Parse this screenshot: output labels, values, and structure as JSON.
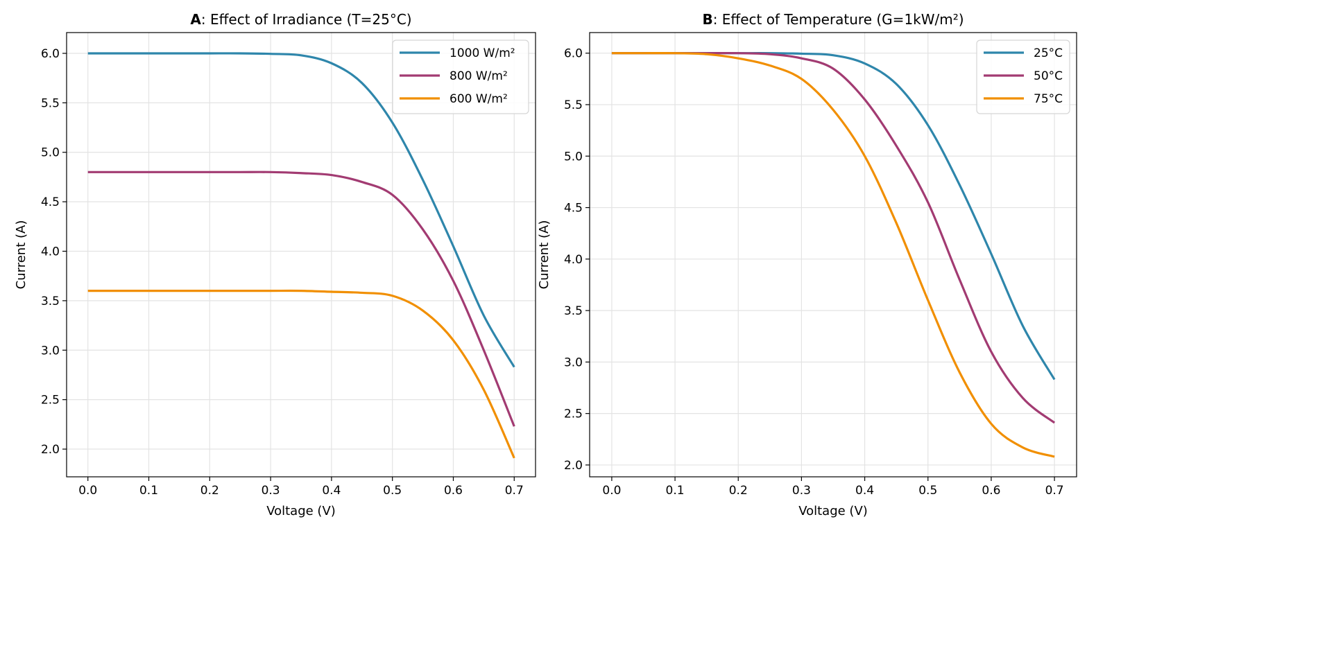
{
  "chart_data": [
    {
      "type": "line",
      "title_bold": "A",
      "title_rest": ": Effect of Irradiance (T=25°C)",
      "xlabel": "Voltage (V)",
      "ylabel": "Current (A)",
      "xlim": [
        -0.035,
        0.735
      ],
      "ylim": [
        1.72,
        6.21
      ],
      "xticks": [
        0.0,
        0.1,
        0.2,
        0.3,
        0.4,
        0.5,
        0.6,
        0.7
      ],
      "xtick_labels": [
        "0.0",
        "0.1",
        "0.2",
        "0.3",
        "0.4",
        "0.5",
        "0.6",
        "0.7"
      ],
      "yticks": [
        2.0,
        2.5,
        3.0,
        3.5,
        4.0,
        4.5,
        5.0,
        5.5,
        6.0
      ],
      "ytick_labels": [
        "2.0",
        "2.5",
        "3.0",
        "3.5",
        "4.0",
        "4.5",
        "5.0",
        "5.5",
        "6.0"
      ],
      "grid": true,
      "legend_position": "top-right",
      "x": [
        0.0,
        0.05,
        0.1,
        0.15,
        0.2,
        0.25,
        0.3,
        0.35,
        0.4,
        0.45,
        0.5,
        0.55,
        0.6,
        0.65,
        0.7
      ],
      "series": [
        {
          "name": "1000 W/m²",
          "color": "#2e86ab",
          "values": [
            6.0,
            6.0,
            6.0,
            6.0,
            6.0,
            6.0,
            5.995,
            5.98,
            5.9,
            5.7,
            5.3,
            4.72,
            4.05,
            3.35,
            2.83
          ]
        },
        {
          "name": "800 W/m²",
          "color": "#a23b72",
          "values": [
            4.8,
            4.8,
            4.8,
            4.8,
            4.8,
            4.8,
            4.8,
            4.79,
            4.77,
            4.7,
            4.57,
            4.22,
            3.7,
            3.0,
            2.23
          ]
        },
        {
          "name": "600 W/m²",
          "color": "#f18f01",
          "values": [
            3.6,
            3.6,
            3.6,
            3.6,
            3.6,
            3.6,
            3.6,
            3.6,
            3.59,
            3.58,
            3.55,
            3.4,
            3.1,
            2.6,
            1.91
          ]
        }
      ]
    },
    {
      "type": "line",
      "title_bold": "B",
      "title_rest": ": Effect of Temperature (G=1kW/m²)",
      "xlabel": "Voltage (V)",
      "ylabel": "Current (A)",
      "xlim": [
        -0.035,
        0.735
      ],
      "ylim": [
        1.885,
        6.2
      ],
      "xticks": [
        0.0,
        0.1,
        0.2,
        0.3,
        0.4,
        0.5,
        0.6,
        0.7
      ],
      "xtick_labels": [
        "0.0",
        "0.1",
        "0.2",
        "0.3",
        "0.4",
        "0.5",
        "0.6",
        "0.7"
      ],
      "yticks": [
        2.0,
        2.5,
        3.0,
        3.5,
        4.0,
        4.5,
        5.0,
        5.5,
        6.0
      ],
      "ytick_labels": [
        "2.0",
        "2.5",
        "3.0",
        "3.5",
        "4.0",
        "4.5",
        "5.0",
        "5.5",
        "6.0"
      ],
      "grid": true,
      "legend_position": "top-right",
      "x": [
        0.0,
        0.05,
        0.1,
        0.15,
        0.2,
        0.25,
        0.3,
        0.35,
        0.4,
        0.45,
        0.5,
        0.55,
        0.6,
        0.65,
        0.7
      ],
      "series": [
        {
          "name": "25°C",
          "color": "#2e86ab",
          "values": [
            6.0,
            6.0,
            6.0,
            6.0,
            6.0,
            6.0,
            5.995,
            5.98,
            5.9,
            5.7,
            5.3,
            4.72,
            4.05,
            3.35,
            2.83
          ]
        },
        {
          "name": "50°C",
          "color": "#a23b72",
          "values": [
            6.0,
            6.0,
            6.0,
            6.0,
            6.0,
            5.99,
            5.95,
            5.85,
            5.55,
            5.1,
            4.55,
            3.8,
            3.1,
            2.65,
            2.41
          ]
        },
        {
          "name": "75°C",
          "color": "#f18f01",
          "values": [
            6.0,
            6.0,
            6.0,
            5.99,
            5.95,
            5.88,
            5.75,
            5.45,
            5.0,
            4.35,
            3.6,
            2.9,
            2.4,
            2.17,
            2.08
          ]
        }
      ]
    }
  ]
}
